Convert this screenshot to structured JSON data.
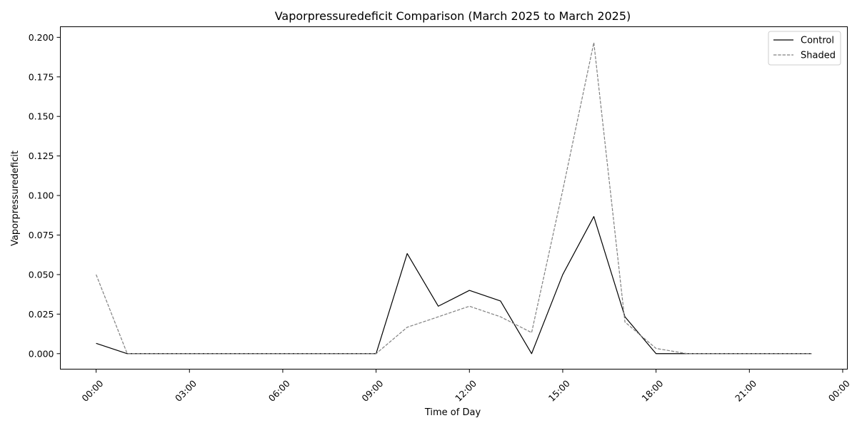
{
  "chart_data": {
    "type": "line",
    "title": "Vaporpressuredeficit Comparison (March 2025 to March 2025)",
    "xlabel": "Time of Day",
    "ylabel": "Vaporpressuredeficit",
    "x_unit": "hour of day",
    "x": [
      0,
      1,
      2,
      3,
      4,
      5,
      6,
      7,
      8,
      9,
      10,
      11,
      12,
      13,
      14,
      15,
      16,
      17,
      18,
      19,
      20,
      21,
      22,
      23
    ],
    "xlim": [
      -1.15,
      24.15
    ],
    "ylim": [
      -0.0098,
      0.2067
    ],
    "x_ticks": [
      0,
      3,
      6,
      9,
      12,
      15,
      18,
      21,
      24
    ],
    "x_tick_labels": [
      "00:00",
      "03:00",
      "06:00",
      "09:00",
      "12:00",
      "15:00",
      "18:00",
      "21:00",
      "00:00"
    ],
    "y_ticks": [
      0.0,
      0.025,
      0.05,
      0.075,
      0.1,
      0.125,
      0.15,
      0.175,
      0.2
    ],
    "y_tick_labels": [
      "0.000",
      "0.025",
      "0.050",
      "0.075",
      "0.100",
      "0.125",
      "0.150",
      "0.175",
      "0.200"
    ],
    "grid": false,
    "legend_position": "top-right",
    "series": [
      {
        "name": "Control",
        "color": "#000000",
        "dash": "solid",
        "values": [
          0.0065,
          0.0,
          0.0,
          0.0,
          0.0,
          0.0,
          0.0,
          0.0,
          0.0,
          0.0,
          0.0633,
          0.03,
          0.04,
          0.0333,
          0.0,
          0.05,
          0.0867,
          0.0233,
          0.0,
          0.0,
          0.0,
          0.0,
          0.0,
          0.0
        ]
      },
      {
        "name": "Shaded",
        "color": "#808080",
        "dash": "dashed",
        "values": [
          0.05,
          0.0,
          0.0,
          0.0,
          0.0,
          0.0,
          0.0,
          0.0,
          0.0,
          0.0,
          0.0167,
          0.0233,
          0.03,
          0.0233,
          0.0133,
          0.1033,
          0.1967,
          0.02,
          0.0033,
          0.0,
          0.0,
          0.0,
          0.0,
          0.0
        ]
      }
    ]
  }
}
